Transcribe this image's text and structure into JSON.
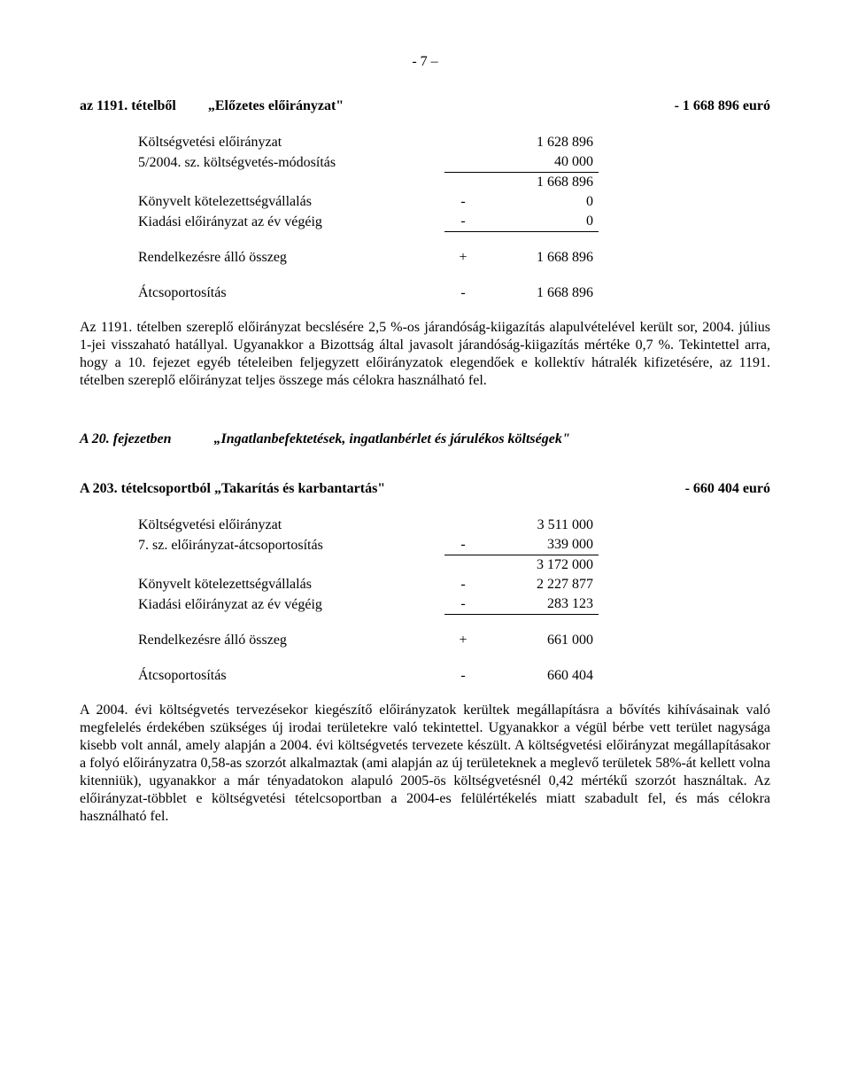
{
  "pageNumber": "- 7 –",
  "item1": {
    "titleLeft1": "az 1191. tételből",
    "titleLeft2": "„Előzetes előirányzat\"",
    "titleRight": "- 1 668 896 euró",
    "rows": [
      {
        "label": "Költségvetési előirányzat",
        "sign": "",
        "value": "1 628 896",
        "underline": false
      },
      {
        "label": "5/2004. sz. költségvetés-módosítás",
        "sign": "",
        "value": "40 000",
        "underline": true
      },
      {
        "label": "",
        "sign": "",
        "value": "1 668 896",
        "underline": false
      },
      {
        "label": "Könyvelt kötelezettségvállalás",
        "sign": "-",
        "value": "0",
        "underline": false
      },
      {
        "label": "Kiadási előirányzat az év végéig",
        "sign": "-",
        "value": "0",
        "underline": true
      }
    ],
    "summary1": {
      "label": "Rendelkezésre álló összeg",
      "sign": "+",
      "value": "1 668 896"
    },
    "summary2": {
      "label": "Átcsoportosítás",
      "sign": "-",
      "value": "1 668 896"
    },
    "paragraph": "Az 1191. tételben szereplő előirányzat becslésére 2,5 %-os járandóság-kiigazítás alapulvételével került sor, 2004. július 1-jei visszaható hatállyal. Ugyanakkor a Bizottság által javasolt járandóság-kiigazítás mértéke 0,7 %. Tekintettel arra, hogy a 10. fejezet egyéb tételeiben feljegyzett előirányzatok elegendőek e kollektív hátralék kifizetésére, az 1191. tételben szereplő előirányzat teljes összege más célokra használható fel."
  },
  "section": {
    "left": "A 20. fejezetben",
    "right": "„Ingatlanbefektetések, ingatlanbérlet és járulékos költségek\""
  },
  "item2": {
    "titleLeft": "A 203. tételcsoportból „Takarítás és karbantartás\"",
    "titleRight": "- 660 404 euró",
    "rows": [
      {
        "label": "Költségvetési előirányzat",
        "sign": "",
        "value": "3 511 000",
        "underline": false
      },
      {
        "label": "7. sz. előirányzat-átcsoportosítás",
        "sign": "-",
        "value": "339 000",
        "underline": true
      },
      {
        "label": "",
        "sign": "",
        "value": "3 172 000",
        "underline": false
      },
      {
        "label": "Könyvelt kötelezettségvállalás",
        "sign": "-",
        "value": "2 227 877",
        "underline": false
      },
      {
        "label": "Kiadási előirányzat az év végéig",
        "sign": "-",
        "value": "283 123",
        "underline": true
      }
    ],
    "summary1": {
      "label": "Rendelkezésre álló összeg",
      "sign": "+",
      "value": "661 000"
    },
    "summary2": {
      "label": "Átcsoportosítás",
      "sign": "-",
      "value": "660 404"
    },
    "paragraph": "A 2004. évi költségvetés tervezésekor kiegészítő előirányzatok kerültek megállapításra a bővítés kihívásainak való megfelelés érdekében szükséges új irodai területekre való tekintettel. Ugyanakkor a végül bérbe vett terület nagysága kisebb volt annál, amely alapján a 2004. évi költségvetés tervezete készült. A költségvetési előirányzat megállapításakor a folyó előirányzatra 0,58-as szorzót alkalmaztak (ami alapján az új területeknek a meglevő területek 58%-át kellett volna kitenniük), ugyanakkor a már tényadatokon alapuló 2005-ös költségvetésnél 0,42 mértékű szorzót használtak. Az előirányzat-többlet e költségvetési tételcsoportban a 2004-es felülértékelés miatt szabadult fel, és más célokra használható fel."
  }
}
